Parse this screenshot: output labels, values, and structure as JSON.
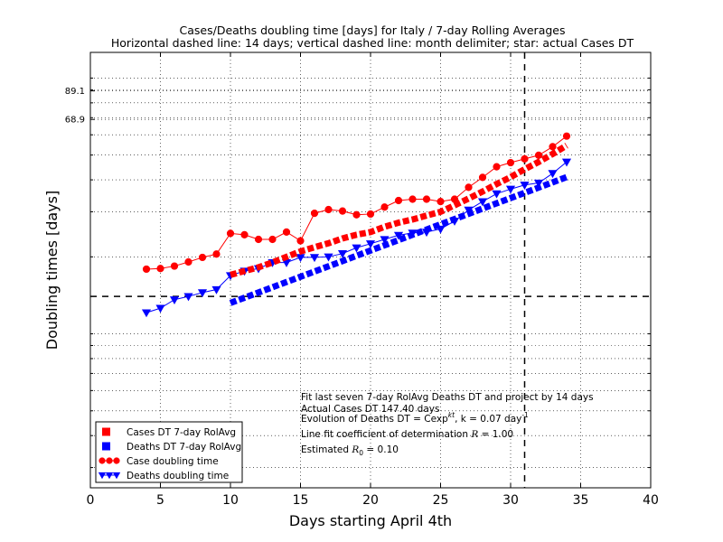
{
  "chart_data": {
    "type": "line",
    "title": "Cases/Deaths doubling time [days] for Italy / 7-day Rolling Averages",
    "subtitle": "Horizontal dashed line: 14 days; vertical dashed line: month delimiter; star: actual Cases DT",
    "xlabel": "Days starting April 4th",
    "ylabel": "Doubling times [days]",
    "xlim": [
      0,
      40
    ],
    "ylim": [
      2.5,
      126
    ],
    "y_scale": "log",
    "grid": true,
    "xticks": [
      0,
      5,
      10,
      15,
      20,
      25,
      30,
      35,
      40
    ],
    "xtick_labels": [
      "0",
      "5",
      "10",
      "15",
      "20",
      "25",
      "30",
      "35",
      "40"
    ],
    "yticks": [
      68.9,
      89.1
    ],
    "ytick_labels": [
      "68.9",
      "89.1"
    ],
    "hline_y": 14,
    "vline_x": 31,
    "series": [
      {
        "name": "Case doubling time",
        "color": "#ff0000",
        "style": "line-circle",
        "x": [
          4,
          5,
          6,
          7,
          8,
          9,
          10,
          11,
          12,
          13,
          14,
          15,
          16,
          17,
          18,
          19,
          20,
          21,
          22,
          23,
          24,
          25,
          26,
          27,
          28,
          29,
          30,
          31,
          32,
          33,
          34
        ],
        "y": [
          17.9,
          18.0,
          18.4,
          19.1,
          19.9,
          20.5,
          24.7,
          24.4,
          23.4,
          23.4,
          25.0,
          23.1,
          29.6,
          30.6,
          30.2,
          29.2,
          29.4,
          31.3,
          33.2,
          33.6,
          33.6,
          32.9,
          33.6,
          37.4,
          40.9,
          45.0,
          46.7,
          48.3,
          49.9,
          53.9,
          59.3
        ]
      },
      {
        "name": "Deaths doubling time",
        "color": "#0000ff",
        "style": "line-triangle",
        "x": [
          4,
          5,
          6,
          7,
          8,
          9,
          10,
          11,
          12,
          13,
          14,
          15,
          16,
          17,
          18,
          19,
          20,
          21,
          22,
          23,
          24,
          25,
          26,
          27,
          28,
          29,
          30,
          31,
          32,
          33,
          34
        ],
        "y": [
          12.1,
          12.6,
          13.6,
          14.0,
          14.5,
          14.9,
          16.9,
          17.6,
          18.0,
          19.0,
          19.0,
          19.9,
          19.9,
          20.0,
          20.6,
          21.7,
          22.5,
          23.4,
          24.3,
          24.8,
          25.0,
          25.7,
          27.6,
          30.5,
          32.9,
          35.3,
          36.8,
          38.2,
          38.9,
          42.4,
          47.0
        ]
      },
      {
        "name": "Cases DT 7-day RolAvg",
        "color": "#ff0000",
        "style": "dashed-thick",
        "x": [
          10,
          11,
          12,
          13,
          14,
          15,
          16,
          17,
          18,
          19,
          20,
          21,
          22,
          23,
          24,
          25,
          26,
          27,
          28,
          29,
          30,
          31,
          32,
          33,
          34
        ],
        "y": [
          17.0,
          17.6,
          18.2,
          19.0,
          20.0,
          21.0,
          21.8,
          22.6,
          23.6,
          24.4,
          25.0,
          26.2,
          27.2,
          28.0,
          29.0,
          30.0,
          31.8,
          33.8,
          36.0,
          38.5,
          41.0,
          44.0,
          47.0,
          50.5,
          54.5
        ]
      },
      {
        "name": "Deaths DT 7-day RolAvg",
        "color": "#0000ff",
        "style": "dashed-thick",
        "x": [
          10,
          34
        ],
        "y": [
          13.2,
          41.0
        ]
      }
    ],
    "legend": {
      "position": "lower-left",
      "entries": [
        "Cases DT 7-day RolAvg",
        "Deaths DT 7-day RolAvg",
        "Case doubling time",
        "Deaths doubling time"
      ]
    },
    "annotations": [
      "Fit last seven 7-day RolAvg Deaths DT and project by 14 days",
      "Actual Cases DT 147.40 days",
      "Evolution of Deaths DT = Cexp",
      "kt",
      ", k = 0.07 day",
      "-1",
      "Line fit coefficient of determination ",
      "R",
      " = 1.00",
      "Estimated ",
      "R",
      "0",
      " = 0.10"
    ]
  }
}
